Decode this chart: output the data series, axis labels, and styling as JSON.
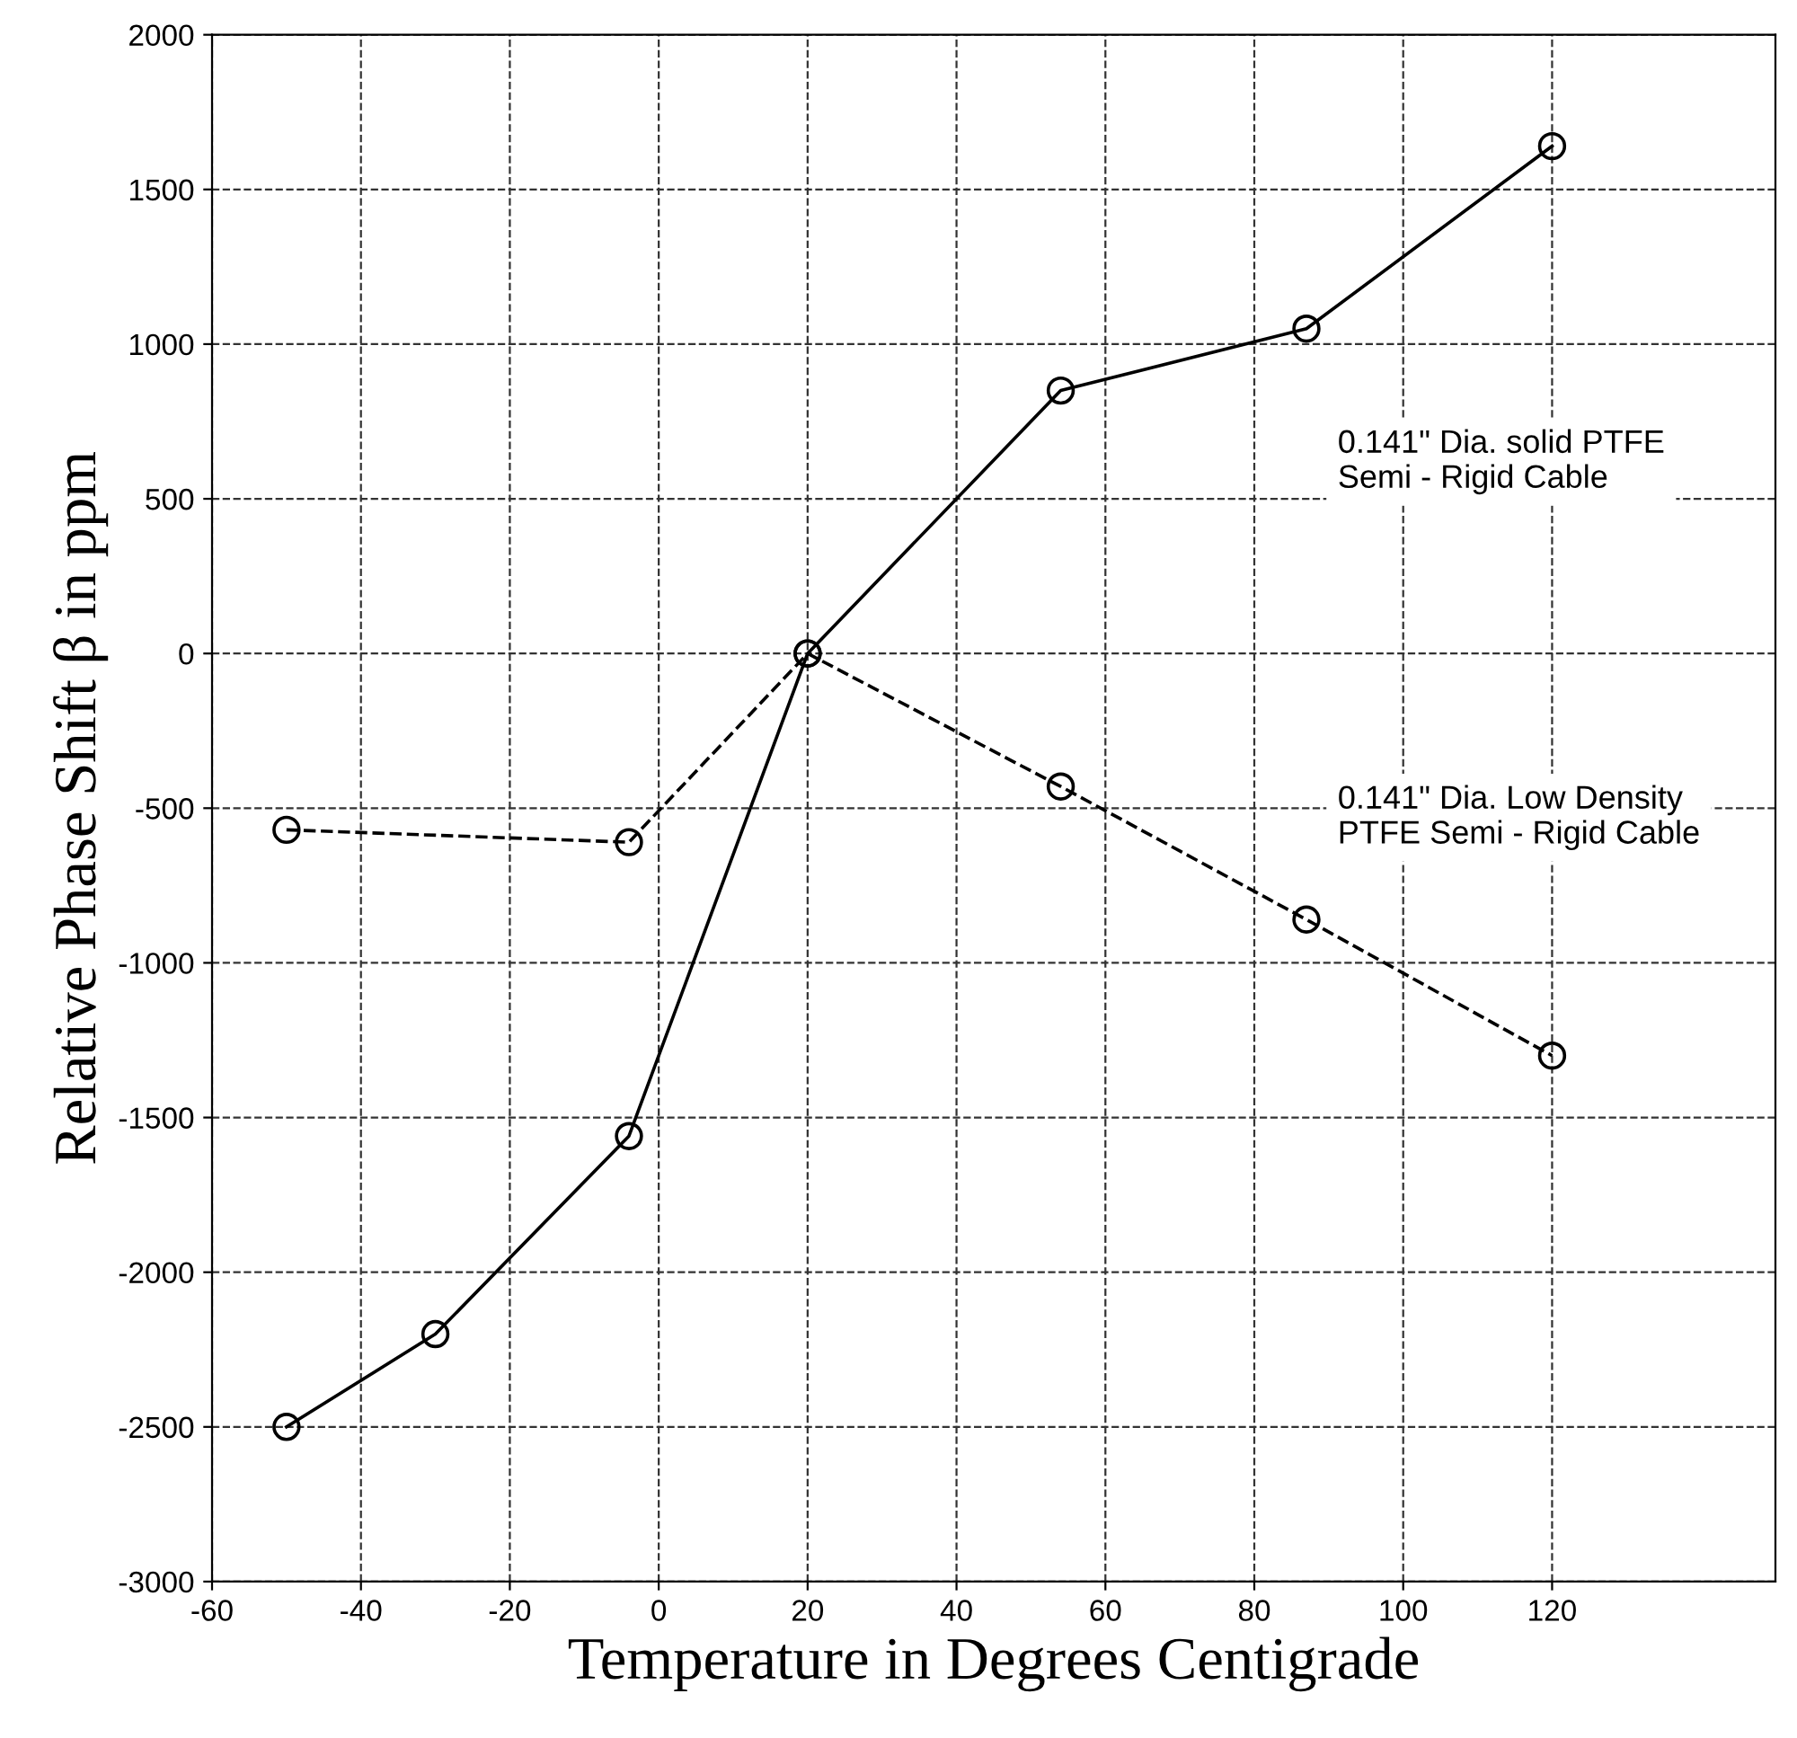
{
  "chart_data": {
    "type": "line",
    "xlabel": "Temperature in Degrees Centigrade",
    "ylabel": "Relative Phase Shift β in ppm",
    "xlim": [
      -60,
      150
    ],
    "xticks": [
      -60,
      -40,
      -20,
      0,
      20,
      40,
      60,
      80,
      100,
      120
    ],
    "ylim": [
      -3000,
      2000
    ],
    "yticks": [
      -3000,
      -2500,
      -2000,
      -1500,
      -1000,
      -500,
      0,
      500,
      1000,
      1500,
      2000
    ],
    "grid": true,
    "marker": "circle",
    "series": [
      {
        "color": "#000000",
        "line_style": "solid",
        "x": [
          -50,
          -30,
          -4,
          20,
          54,
          87,
          120
        ],
        "values": [
          -2500,
          -2200,
          -1560,
          0,
          850,
          1050,
          1640
        ]
      },
      {
        "color": "#000000",
        "line_style": "dashed",
        "x": [
          -50,
          -4,
          20,
          54,
          87,
          120
        ],
        "values": [
          -570,
          -610,
          0,
          -430,
          -860,
          -1300
        ]
      }
    ],
    "annotations": [
      "0.141\" Dia. solid PTFE\nSemi - Rigid Cable",
      "0.141\" Dia. Low Density\nPTFE Semi - Rigid Cable"
    ]
  }
}
